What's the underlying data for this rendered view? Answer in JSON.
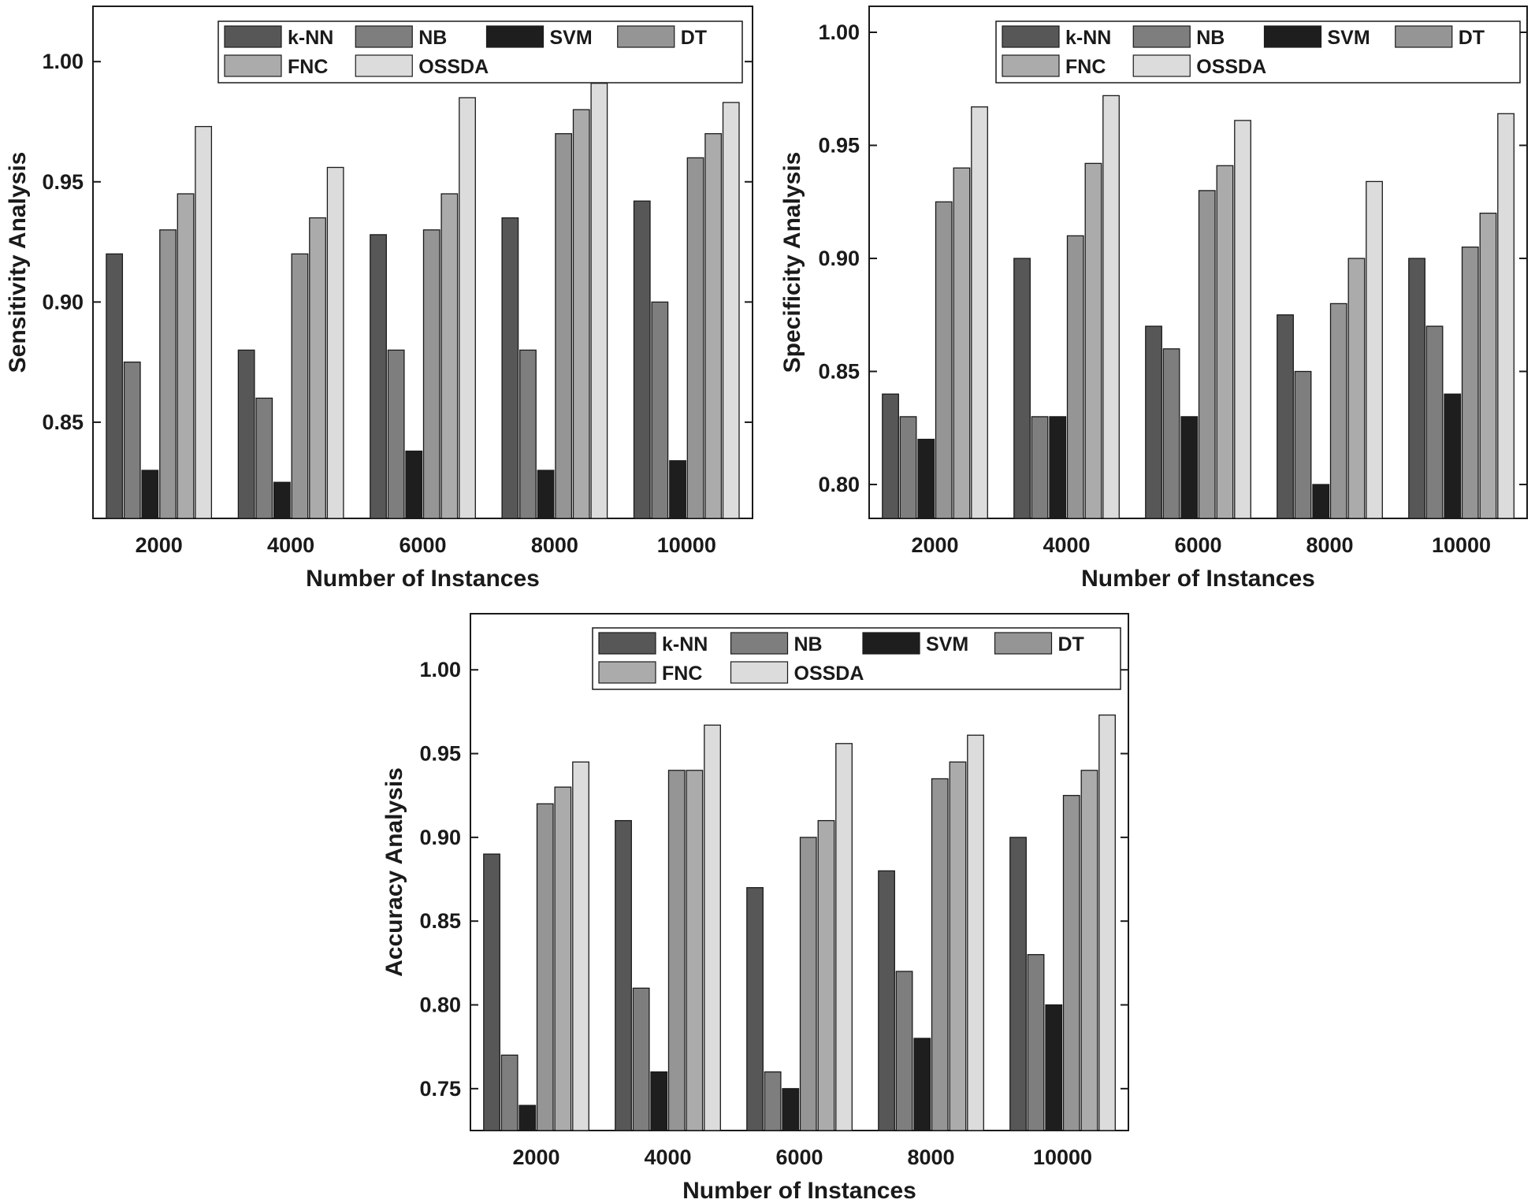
{
  "chart_data": [
    {
      "type": "bar",
      "title": "",
      "xlabel": "Number of Instances",
      "ylabel": "Sensitivity Analysis",
      "categories": [
        "2000",
        "4000",
        "6000",
        "8000",
        "10000"
      ],
      "ylim": [
        0.81,
        1.023
      ],
      "yticks": [
        0.85,
        0.9,
        0.95,
        1.0
      ],
      "ytick_labels": [
        "0.85",
        "0.90",
        "0.95",
        "1.00"
      ],
      "legend_position": "top-right",
      "series": [
        {
          "name": "k-NN",
          "color": "#575757",
          "values": [
            0.92,
            0.88,
            0.928,
            0.935,
            0.942
          ]
        },
        {
          "name": "NB",
          "color": "#7e7e7e",
          "values": [
            0.875,
            0.86,
            0.88,
            0.88,
            0.9
          ]
        },
        {
          "name": "SVM",
          "color": "#1e1e1e",
          "values": [
            0.83,
            0.825,
            0.838,
            0.83,
            0.834
          ]
        },
        {
          "name": "DT",
          "color": "#959595",
          "values": [
            0.93,
            0.92,
            0.93,
            0.97,
            0.96
          ]
        },
        {
          "name": "FNC",
          "color": "#ababab",
          "values": [
            0.945,
            0.935,
            0.945,
            0.98,
            0.97
          ]
        },
        {
          "name": "OSSDA",
          "color": "#dcdcdc",
          "values": [
            0.973,
            0.956,
            0.985,
            0.991,
            0.983
          ]
        }
      ]
    },
    {
      "type": "bar",
      "title": "",
      "xlabel": "Number of Instances",
      "ylabel": "Specificity Analysis",
      "categories": [
        "2000",
        "4000",
        "6000",
        "8000",
        "10000"
      ],
      "ylim": [
        0.785,
        1.0115
      ],
      "yticks": [
        0.8,
        0.85,
        0.9,
        0.95,
        1.0
      ],
      "ytick_labels": [
        "0.80",
        "0.85",
        "0.90",
        "0.95",
        "1.00"
      ],
      "legend_position": "top-right",
      "series": [
        {
          "name": "k-NN",
          "color": "#575757",
          "values": [
            0.84,
            0.9,
            0.87,
            0.875,
            0.9
          ]
        },
        {
          "name": "NB",
          "color": "#7e7e7e",
          "values": [
            0.83,
            0.83,
            0.86,
            0.85,
            0.87
          ]
        },
        {
          "name": "SVM",
          "color": "#1e1e1e",
          "values": [
            0.82,
            0.83,
            0.83,
            0.8,
            0.84
          ]
        },
        {
          "name": "DT",
          "color": "#959595",
          "values": [
            0.925,
            0.91,
            0.93,
            0.88,
            0.905
          ]
        },
        {
          "name": "FNC",
          "color": "#ababab",
          "values": [
            0.94,
            0.942,
            0.941,
            0.9,
            0.92
          ]
        },
        {
          "name": "OSSDA",
          "color": "#dcdcdc",
          "values": [
            0.967,
            0.972,
            0.961,
            0.934,
            0.964
          ]
        }
      ]
    },
    {
      "type": "bar",
      "title": "",
      "xlabel": "Number of Instances",
      "ylabel": "Accuracy Analysis",
      "categories": [
        "2000",
        "4000",
        "6000",
        "8000",
        "10000"
      ],
      "ylim": [
        0.725,
        1.0335
      ],
      "yticks": [
        0.75,
        0.8,
        0.85,
        0.9,
        0.95,
        1.0
      ],
      "ytick_labels": [
        "0.75",
        "0.80",
        "0.85",
        "0.90",
        "0.95",
        "1.00"
      ],
      "legend_position": "top-right",
      "series": [
        {
          "name": "k-NN",
          "color": "#575757",
          "values": [
            0.89,
            0.91,
            0.87,
            0.88,
            0.9
          ]
        },
        {
          "name": "NB",
          "color": "#7e7e7e",
          "values": [
            0.77,
            0.81,
            0.76,
            0.82,
            0.83
          ]
        },
        {
          "name": "SVM",
          "color": "#1e1e1e",
          "values": [
            0.74,
            0.76,
            0.75,
            0.78,
            0.8
          ]
        },
        {
          "name": "DT",
          "color": "#959595",
          "values": [
            0.92,
            0.94,
            0.9,
            0.935,
            0.925
          ]
        },
        {
          "name": "FNC",
          "color": "#ababab",
          "values": [
            0.93,
            0.94,
            0.91,
            0.945,
            0.94
          ]
        },
        {
          "name": "OSSDA",
          "color": "#dcdcdc",
          "values": [
            0.945,
            0.967,
            0.956,
            0.961,
            0.973
          ]
        }
      ]
    }
  ]
}
